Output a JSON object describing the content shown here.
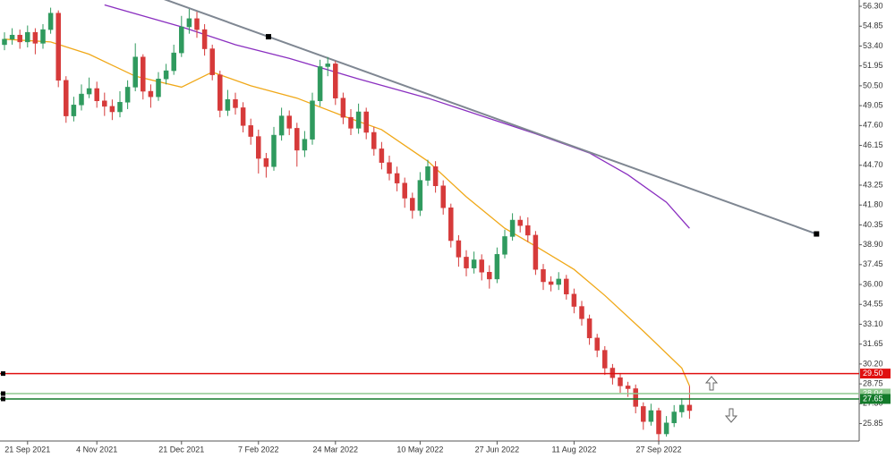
{
  "chart_data": {
    "type": "candlestick",
    "categories": [
      null,
      null,
      null,
      "21 Sep 2021",
      null,
      null,
      null,
      null,
      null,
      null,
      null,
      null,
      "4 Nov 2021",
      null,
      null,
      null,
      null,
      null,
      null,
      null,
      null,
      null,
      null,
      "21 Dec 2021",
      null,
      null,
      null,
      null,
      null,
      null,
      null,
      null,
      null,
      "7 Feb 2022",
      null,
      null,
      null,
      null,
      null,
      null,
      null,
      null,
      null,
      "24 Mar 2022",
      null,
      null,
      null,
      null,
      null,
      null,
      null,
      null,
      null,
      null,
      "10 May 2022",
      null,
      null,
      null,
      null,
      null,
      null,
      null,
      null,
      null,
      "27 Jun 2022",
      null,
      null,
      null,
      null,
      null,
      null,
      null,
      null,
      null,
      "11 Aug 2022",
      null,
      null,
      null,
      null,
      null,
      null,
      null,
      null,
      null,
      null,
      "27 Sep 2022",
      null,
      null,
      null,
      null
    ],
    "open": [
      53.5,
      53.9,
      54.2,
      53.7,
      54.4,
      53.6,
      54.6,
      55.8,
      50.9,
      48.3,
      49.1,
      49.9,
      50.3,
      49.4,
      49.0,
      48.6,
      49.3,
      50.4,
      52.6,
      50.1,
      49.7,
      51.0,
      51.6,
      52.9,
      54.8,
      55.4,
      54.6,
      53.2,
      51.3,
      48.7,
      49.5,
      48.9,
      47.6,
      46.8,
      45.2,
      44.6,
      46.9,
      48.3,
      47.4,
      45.8,
      46.6,
      49.4,
      51.9,
      52.1,
      49.6,
      48.2,
      47.4,
      48.6,
      47.1,
      45.9,
      44.9,
      44.1,
      43.4,
      42.3,
      41.4,
      43.6,
      44.6,
      43.2,
      41.6,
      39.2,
      38.0,
      37.2,
      37.8,
      36.9,
      36.4,
      38.2,
      39.5,
      40.7,
      40.3,
      39.6,
      37.1,
      36.2,
      36.0,
      36.4,
      35.3,
      34.4,
      33.5,
      32.1,
      31.2,
      29.9,
      29.2,
      28.6,
      28.4,
      27.1,
      26.0,
      26.8,
      25.1,
      25.9,
      26.7,
      27.2
    ],
    "high": [
      54.4,
      54.7,
      54.6,
      54.9,
      54.7,
      55.0,
      56.2,
      56.0,
      51.2,
      49.7,
      50.6,
      51.1,
      50.8,
      50.0,
      49.5,
      50.1,
      50.9,
      53.6,
      52.8,
      50.6,
      51.5,
      52.1,
      53.5,
      55.6,
      56.1,
      55.9,
      55.0,
      53.5,
      51.6,
      50.2,
      50.0,
      49.3,
      48.1,
      47.3,
      45.6,
      47.5,
      48.9,
      48.7,
      47.8,
      47.2,
      50.0,
      52.4,
      52.6,
      52.3,
      50.0,
      48.8,
      49.2,
      48.9,
      47.5,
      46.4,
      45.4,
      44.6,
      43.8,
      42.7,
      44.2,
      45.1,
      45.0,
      43.6,
      41.9,
      39.6,
      38.5,
      38.4,
      38.2,
      37.4,
      38.7,
      40.0,
      41.2,
      41.0,
      40.9,
      39.9,
      37.5,
      36.6,
      36.9,
      36.7,
      35.7,
      34.8,
      33.8,
      32.4,
      31.5,
      30.2,
      29.5,
      28.9,
      28.7,
      27.4,
      27.3,
      27.0,
      26.4,
      27.2,
      27.7,
      28.6
    ],
    "low": [
      53.1,
      53.5,
      53.2,
      53.3,
      52.8,
      53.2,
      54.3,
      50.4,
      47.8,
      47.9,
      48.7,
      49.6,
      48.9,
      48.3,
      48.0,
      48.2,
      48.8,
      50.1,
      49.5,
      48.9,
      49.4,
      50.6,
      51.3,
      52.6,
      54.3,
      54.0,
      52.7,
      50.9,
      48.2,
      48.3,
      48.4,
      47.1,
      46.2,
      44.1,
      43.8,
      44.3,
      46.5,
      46.9,
      44.6,
      45.3,
      46.2,
      49.0,
      51.2,
      49.1,
      47.7,
      46.9,
      47.0,
      46.6,
      45.4,
      44.4,
      43.6,
      42.8,
      41.6,
      40.8,
      41.0,
      43.2,
      42.7,
      41.1,
      38.7,
      37.3,
      36.6,
      36.8,
      36.3,
      35.7,
      36.1,
      37.9,
      39.2,
      39.8,
      39.1,
      36.7,
      35.6,
      35.5,
      35.6,
      34.9,
      33.9,
      33.0,
      31.6,
      30.7,
      29.4,
      28.7,
      28.1,
      27.8,
      26.6,
      25.4,
      25.7,
      24.6,
      24.9,
      25.6,
      26.3,
      26.2
    ],
    "close": [
      53.9,
      54.2,
      53.7,
      54.4,
      53.6,
      54.6,
      55.8,
      50.9,
      48.3,
      49.1,
      49.9,
      50.3,
      49.4,
      49.0,
      48.6,
      49.3,
      50.4,
      52.6,
      50.1,
      49.7,
      51.0,
      51.6,
      52.9,
      54.8,
      55.4,
      54.6,
      53.2,
      51.3,
      48.7,
      49.5,
      48.9,
      47.6,
      46.8,
      45.2,
      44.6,
      46.9,
      48.3,
      47.4,
      45.8,
      46.6,
      49.4,
      51.9,
      52.1,
      49.6,
      48.2,
      47.4,
      48.6,
      47.1,
      45.9,
      44.9,
      44.1,
      43.4,
      42.3,
      41.4,
      43.6,
      44.6,
      43.2,
      41.6,
      39.2,
      38.0,
      37.2,
      37.8,
      36.9,
      36.4,
      38.2,
      39.5,
      40.7,
      40.3,
      39.6,
      37.1,
      36.2,
      36.0,
      36.4,
      35.3,
      34.4,
      33.5,
      32.1,
      31.2,
      29.9,
      29.2,
      28.6,
      28.4,
      27.1,
      26.0,
      26.8,
      25.1,
      25.9,
      26.7,
      27.2,
      26.8
    ],
    "up_color": "#2f9a5e",
    "down_color": "#d63a3a",
    "series": [
      {
        "color": "#f0a818",
        "x": [
          0,
          6,
          11,
          17,
          23,
          27,
          32,
          38,
          44,
          49,
          55,
          60,
          65,
          69,
          74,
          78,
          83,
          88,
          89
        ],
        "values": [
          53.9,
          53.7,
          52.8,
          51.2,
          50.4,
          51.5,
          50.5,
          49.6,
          48.3,
          47.3,
          45.0,
          42.4,
          40.1,
          38.8,
          37.1,
          35.2,
          32.6,
          29.9,
          28.6
        ]
      },
      {
        "color": "#8a2fc0",
        "x": [
          13,
          23,
          30,
          37,
          46,
          55,
          62,
          69,
          76,
          81,
          86,
          89
        ],
        "values": [
          56.4,
          54.8,
          53.5,
          52.5,
          51.0,
          49.6,
          48.3,
          47.0,
          45.6,
          44.0,
          42.0,
          40.1
        ]
      }
    ],
    "trendline": {
      "color": "#7f8792",
      "x": [
        34.3,
        105.5
      ],
      "values": [
        54.08,
        39.69
      ]
    },
    "levels": [
      {
        "value": 29.5,
        "label": "29.50",
        "color": "#e01010"
      },
      {
        "value": 28.04,
        "label": "28.04",
        "color": "#8fc98f"
      },
      {
        "value": 27.65,
        "label": "27.65",
        "color": "#137a2a"
      }
    ],
    "ylim": [
      24.58,
      56.76
    ],
    "yticks": [
      {
        "value": 56.3,
        "label": "56.30"
      },
      {
        "value": 54.85,
        "label": "54.85"
      },
      {
        "value": 53.4,
        "label": "53.40"
      },
      {
        "value": 51.95,
        "label": "51.95"
      },
      {
        "value": 50.5,
        "label": "50.50"
      },
      {
        "value": 49.05,
        "label": "49.05"
      },
      {
        "value": 47.6,
        "label": "47.60"
      },
      {
        "value": 46.15,
        "label": "46.15"
      },
      {
        "value": 44.7,
        "label": "44.70"
      },
      {
        "value": 43.25,
        "label": "43.25"
      },
      {
        "value": 41.8,
        "label": "41.80"
      },
      {
        "value": 40.35,
        "label": "40.35"
      },
      {
        "value": 38.9,
        "label": "38.90"
      },
      {
        "value": 37.45,
        "label": "37.45"
      },
      {
        "value": 36.0,
        "label": "36.00"
      },
      {
        "value": 34.55,
        "label": "34.55"
      },
      {
        "value": 33.1,
        "label": "33.10"
      },
      {
        "value": 31.65,
        "label": "31.65"
      },
      {
        "value": 30.2,
        "label": "30.20"
      },
      {
        "value": 28.75,
        "label": "28.75"
      },
      {
        "value": 27.3,
        "label": "27.30"
      },
      {
        "value": 25.85,
        "label": "25.85"
      }
    ],
    "grid": false
  }
}
